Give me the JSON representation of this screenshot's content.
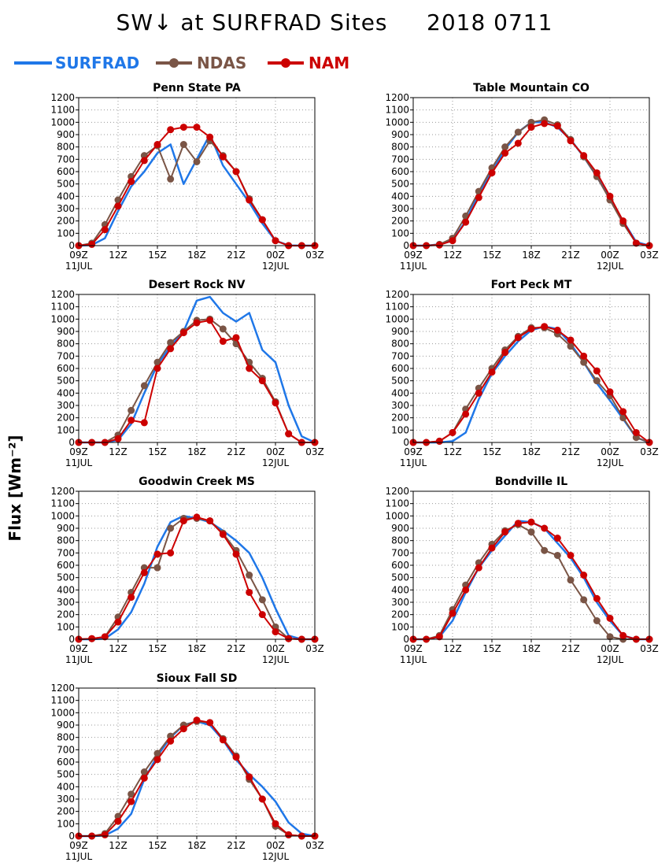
{
  "title": "SW↓ at SURFRAD Sites     2018 0711",
  "y_axis_label": "Flux [Wm⁻²]",
  "legend": [
    {
      "name": "SURFRAD",
      "color": "#1f77e8",
      "marker": false
    },
    {
      "name": "NDAS",
      "color": "#7a5546",
      "marker": true
    },
    {
      "name": "NAM",
      "color": "#cc0000",
      "marker": true
    }
  ],
  "chart_data": [
    {
      "type": "line",
      "title": "Penn State PA",
      "x": [
        "09Z",
        "10Z",
        "11Z",
        "12Z",
        "13Z",
        "14Z",
        "15Z",
        "16Z",
        "17Z",
        "18Z",
        "19Z",
        "20Z",
        "21Z",
        "22Z",
        "23Z",
        "00Z",
        "01Z",
        "02Z",
        "03Z"
      ],
      "x_tick_labels": [
        "09Z",
        "12Z",
        "15Z",
        "18Z",
        "21Z",
        "00Z",
        "03Z"
      ],
      "x_date_labels": [
        "11JUL",
        "12JUL"
      ],
      "ylim": [
        0,
        1200
      ],
      "y_ticks": [
        0,
        100,
        200,
        300,
        400,
        500,
        600,
        700,
        800,
        900,
        1000,
        1100,
        1200
      ],
      "grid": true,
      "series": [
        {
          "name": "SURFRAD",
          "values": [
            0,
            5,
            60,
            280,
            480,
            600,
            750,
            820,
            500,
            700,
            900,
            650,
            500,
            350,
            180,
            40,
            2,
            0,
            0
          ]
        },
        {
          "name": "NDAS",
          "values": [
            0,
            20,
            170,
            370,
            560,
            730,
            810,
            540,
            820,
            680,
            850,
            730,
            600,
            380,
            210,
            40,
            0,
            0,
            0
          ]
        },
        {
          "name": "NAM",
          "values": [
            0,
            10,
            130,
            320,
            520,
            690,
            820,
            940,
            960,
            960,
            880,
            720,
            600,
            370,
            210,
            40,
            0,
            0,
            0
          ]
        }
      ]
    },
    {
      "type": "line",
      "title": "Table Mountain CO",
      "x": [
        "09Z",
        "10Z",
        "11Z",
        "12Z",
        "13Z",
        "14Z",
        "15Z",
        "16Z",
        "17Z",
        "18Z",
        "19Z",
        "20Z",
        "21Z",
        "22Z",
        "23Z",
        "00Z",
        "01Z",
        "02Z",
        "03Z"
      ],
      "x_tick_labels": [
        "09Z",
        "12Z",
        "15Z",
        "18Z",
        "21Z",
        "00Z",
        "03Z"
      ],
      "x_date_labels": [
        "11JUL",
        "12JUL"
      ],
      "ylim": [
        0,
        1200
      ],
      "y_ticks": [
        0,
        100,
        200,
        300,
        400,
        500,
        600,
        700,
        800,
        900,
        1000,
        1100,
        1200
      ],
      "grid": true,
      "series": [
        {
          "name": "SURFRAD",
          "values": [
            0,
            0,
            10,
            40,
            200,
            420,
            600,
            780,
            920,
            1000,
            1000,
            960,
            860,
            720,
            560,
            380,
            200,
            30,
            0
          ]
        },
        {
          "name": "NDAS",
          "values": [
            0,
            0,
            10,
            60,
            240,
            440,
            630,
            800,
            920,
            1000,
            1020,
            980,
            860,
            720,
            560,
            370,
            180,
            20,
            0
          ]
        },
        {
          "name": "NAM",
          "values": [
            0,
            0,
            5,
            40,
            190,
            390,
            590,
            750,
            830,
            960,
            990,
            970,
            850,
            730,
            590,
            400,
            200,
            20,
            0
          ]
        }
      ]
    },
    {
      "type": "line",
      "title": "Desert Rock NV",
      "x": [
        "09Z",
        "10Z",
        "11Z",
        "12Z",
        "13Z",
        "14Z",
        "15Z",
        "16Z",
        "17Z",
        "18Z",
        "19Z",
        "20Z",
        "21Z",
        "22Z",
        "23Z",
        "00Z",
        "01Z",
        "02Z",
        "03Z"
      ],
      "x_tick_labels": [
        "09Z",
        "12Z",
        "15Z",
        "18Z",
        "21Z",
        "00Z",
        "03Z"
      ],
      "x_date_labels": [
        "11JUL",
        "12JUL"
      ],
      "ylim": [
        0,
        1200
      ],
      "y_ticks": [
        0,
        100,
        200,
        300,
        400,
        500,
        600,
        700,
        800,
        900,
        1000,
        1100,
        1200
      ],
      "grid": true,
      "series": [
        {
          "name": "SURFRAD",
          "values": [
            0,
            0,
            0,
            20,
            150,
            400,
            630,
            780,
            900,
            1150,
            1180,
            1050,
            980,
            1050,
            750,
            650,
            300,
            50,
            0
          ]
        },
        {
          "name": "NDAS",
          "values": [
            0,
            0,
            0,
            60,
            260,
            460,
            650,
            810,
            900,
            990,
            1000,
            920,
            800,
            650,
            520,
            330,
            70,
            0,
            0
          ]
        },
        {
          "name": "NAM",
          "values": [
            0,
            0,
            0,
            30,
            180,
            160,
            600,
            760,
            890,
            970,
            990,
            820,
            850,
            600,
            500,
            320,
            70,
            0,
            0
          ]
        }
      ]
    },
    {
      "type": "line",
      "title": "Fort Peck MT",
      "x": [
        "09Z",
        "10Z",
        "11Z",
        "12Z",
        "13Z",
        "14Z",
        "15Z",
        "16Z",
        "17Z",
        "18Z",
        "19Z",
        "20Z",
        "21Z",
        "22Z",
        "23Z",
        "00Z",
        "01Z",
        "02Z",
        "03Z"
      ],
      "x_tick_labels": [
        "09Z",
        "12Z",
        "15Z",
        "18Z",
        "21Z",
        "00Z",
        "03Z"
      ],
      "x_date_labels": [
        "11JUL",
        "12JUL"
      ],
      "ylim": [
        0,
        1200
      ],
      "y_ticks": [
        0,
        100,
        200,
        300,
        400,
        500,
        600,
        700,
        800,
        900,
        1000,
        1100,
        1200
      ],
      "grid": true,
      "series": [
        {
          "name": "SURFRAD",
          "values": [
            0,
            0,
            0,
            10,
            80,
            350,
            560,
            700,
            820,
            910,
            940,
            920,
            800,
            650,
            480,
            340,
            190,
            40,
            0
          ]
        },
        {
          "name": "NDAS",
          "values": [
            0,
            0,
            10,
            80,
            270,
            440,
            600,
            750,
            860,
            930,
            930,
            880,
            780,
            650,
            500,
            380,
            200,
            40,
            0
          ]
        },
        {
          "name": "NAM",
          "values": [
            0,
            0,
            10,
            80,
            230,
            400,
            570,
            730,
            850,
            920,
            940,
            910,
            830,
            700,
            580,
            410,
            250,
            80,
            0
          ]
        }
      ]
    },
    {
      "type": "line",
      "title": "Goodwin Creek MS",
      "x": [
        "09Z",
        "10Z",
        "11Z",
        "12Z",
        "13Z",
        "14Z",
        "15Z",
        "16Z",
        "17Z",
        "18Z",
        "19Z",
        "20Z",
        "21Z",
        "22Z",
        "23Z",
        "00Z",
        "01Z",
        "02Z",
        "03Z"
      ],
      "x_tick_labels": [
        "09Z",
        "12Z",
        "15Z",
        "18Z",
        "21Z",
        "00Z",
        "03Z"
      ],
      "x_date_labels": [
        "11JUL",
        "12JUL"
      ],
      "ylim": [
        0,
        1200
      ],
      "y_ticks": [
        0,
        100,
        200,
        300,
        400,
        500,
        600,
        700,
        800,
        900,
        1000,
        1100,
        1200
      ],
      "grid": true,
      "series": [
        {
          "name": "SURFRAD",
          "values": [
            0,
            0,
            5,
            80,
            220,
            450,
            750,
            950,
            1000,
            980,
            950,
            880,
            800,
            700,
            500,
            250,
            30,
            0,
            0
          ]
        },
        {
          "name": "NDAS",
          "values": [
            0,
            5,
            20,
            180,
            380,
            580,
            580,
            900,
            980,
            980,
            960,
            860,
            720,
            520,
            320,
            100,
            5,
            0,
            0
          ]
        },
        {
          "name": "NAM",
          "values": [
            0,
            5,
            20,
            140,
            340,
            540,
            690,
            700,
            960,
            990,
            960,
            850,
            690,
            380,
            200,
            60,
            5,
            0,
            0
          ]
        }
      ]
    },
    {
      "type": "line",
      "title": "Bondville IL",
      "x": [
        "09Z",
        "10Z",
        "11Z",
        "12Z",
        "13Z",
        "14Z",
        "15Z",
        "16Z",
        "17Z",
        "18Z",
        "19Z",
        "20Z",
        "21Z",
        "22Z",
        "23Z",
        "00Z",
        "01Z",
        "02Z",
        "03Z"
      ],
      "x_tick_labels": [
        "09Z",
        "12Z",
        "15Z",
        "18Z",
        "21Z",
        "00Z",
        "03Z"
      ],
      "x_date_labels": [
        "11JUL",
        "12JUL"
      ],
      "ylim": [
        0,
        1200
      ],
      "y_ticks": [
        0,
        100,
        200,
        300,
        400,
        500,
        600,
        700,
        800,
        900,
        1000,
        1100,
        1200
      ],
      "grid": true,
      "series": [
        {
          "name": "SURFRAD",
          "values": [
            0,
            0,
            20,
            150,
            380,
            580,
            720,
            840,
            960,
            950,
            900,
            780,
            660,
            500,
            300,
            150,
            30,
            0,
            0
          ]
        },
        {
          "name": "NDAS",
          "values": [
            0,
            0,
            30,
            240,
            440,
            620,
            770,
            880,
            930,
            870,
            720,
            680,
            480,
            320,
            150,
            20,
            0,
            0,
            0
          ]
        },
        {
          "name": "NAM",
          "values": [
            0,
            0,
            20,
            210,
            400,
            580,
            740,
            870,
            940,
            950,
            900,
            820,
            680,
            520,
            330,
            170,
            30,
            0,
            0
          ]
        }
      ]
    },
    {
      "type": "line",
      "title": "Sioux Fall SD",
      "x": [
        "09Z",
        "10Z",
        "11Z",
        "12Z",
        "13Z",
        "14Z",
        "15Z",
        "16Z",
        "17Z",
        "18Z",
        "19Z",
        "20Z",
        "21Z",
        "22Z",
        "23Z",
        "00Z",
        "01Z",
        "02Z",
        "03Z"
      ],
      "x_tick_labels": [
        "09Z",
        "12Z",
        "15Z",
        "18Z",
        "21Z",
        "00Z",
        "03Z"
      ],
      "x_date_labels": [
        "11JUL",
        "12JUL"
      ],
      "ylim": [
        0,
        1200
      ],
      "y_ticks": [
        0,
        100,
        200,
        300,
        400,
        500,
        600,
        700,
        800,
        900,
        1000,
        1100,
        1200
      ],
      "grid": true,
      "series": [
        {
          "name": "SURFRAD",
          "values": [
            0,
            0,
            5,
            60,
            180,
            460,
            650,
            800,
            900,
            930,
            900,
            780,
            620,
            500,
            400,
            280,
            110,
            20,
            0
          ]
        },
        {
          "name": "NDAS",
          "values": [
            0,
            0,
            20,
            160,
            340,
            520,
            670,
            810,
            900,
            930,
            920,
            790,
            650,
            460,
            300,
            80,
            10,
            0,
            0
          ]
        },
        {
          "name": "NAM",
          "values": [
            0,
            0,
            10,
            120,
            280,
            470,
            620,
            770,
            870,
            940,
            920,
            780,
            640,
            480,
            300,
            100,
            10,
            0,
            0
          ]
        }
      ]
    }
  ]
}
